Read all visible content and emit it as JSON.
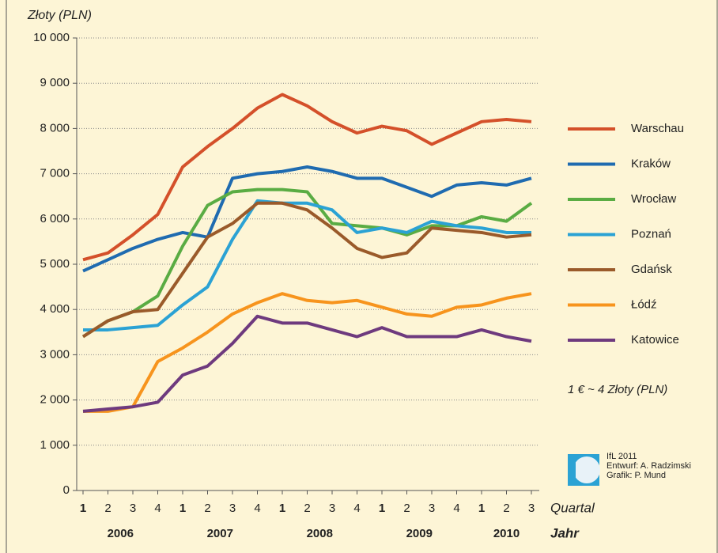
{
  "chart_data": {
    "type": "line",
    "y_label": "Złoty (PLN)",
    "categories": [
      "1",
      "2",
      "3",
      "4",
      "1",
      "2",
      "3",
      "4",
      "1",
      "2",
      "3",
      "4",
      "1",
      "2",
      "3",
      "4",
      "1",
      "2",
      "3"
    ],
    "x_label": "Quartal",
    "years": [
      "2006",
      "2007",
      "2008",
      "2009",
      "2010"
    ],
    "years_label": "Jahr",
    "ylim": [
      0,
      10000
    ],
    "yticks": [
      0,
      {
        "value": 1000,
        "label": "1 000"
      },
      {
        "value": 2000,
        "label": "2 000"
      },
      {
        "value": 3000,
        "label": "3 000"
      },
      {
        "value": 4000,
        "label": "4 000"
      },
      {
        "value": 5000,
        "label": "5 000"
      },
      {
        "value": 6000,
        "label": "6 000"
      },
      {
        "value": 7000,
        "label": "7 000"
      },
      {
        "value": 8000,
        "label": "8 000"
      },
      {
        "value": 9000,
        "label": "9 000"
      },
      {
        "value": 10000,
        "label": "10 000"
      }
    ],
    "grid": true,
    "legend": "right",
    "series": [
      {
        "name": "Warschau",
        "color": "#d4502a",
        "values": [
          5100,
          5250,
          5650,
          6100,
          7150,
          7600,
          8000,
          8450,
          8750,
          8500,
          8150,
          7900,
          8050,
          7950,
          7650,
          7900,
          8150,
          8200,
          8150
        ]
      },
      {
        "name": "Kraków",
        "color": "#1f6bb0",
        "values": [
          4850,
          5100,
          5350,
          5550,
          5700,
          5600,
          6900,
          7000,
          7050,
          7150,
          7050,
          6900,
          6900,
          6700,
          6500,
          6750,
          6800,
          6750,
          6900
        ]
      },
      {
        "name": "Wrocław",
        "color": "#5aac43",
        "values": [
          3400,
          3750,
          3950,
          4300,
          5400,
          6300,
          6600,
          6650,
          6650,
          6600,
          5900,
          5850,
          5800,
          5650,
          5850,
          5850,
          6050,
          5950,
          6350
        ]
      },
      {
        "name": "Poznań",
        "color": "#2ba2d4",
        "values": [
          3550,
          3550,
          3600,
          3650,
          4100,
          4500,
          5550,
          6400,
          6350,
          6350,
          6200,
          5700,
          5800,
          5700,
          5950,
          5850,
          5800,
          5700,
          5700
        ]
      },
      {
        "name": "Gdańsk",
        "color": "#9a5a2a",
        "values": [
          3400,
          3750,
          3950,
          4000,
          4800,
          5600,
          5900,
          6350,
          6350,
          6200,
          5800,
          5350,
          5150,
          5250,
          5800,
          5750,
          5700,
          5600,
          5650
        ]
      },
      {
        "name": "Łódź",
        "color": "#f7941d",
        "values": [
          1750,
          1750,
          1850,
          2850,
          3150,
          3500,
          3900,
          4150,
          4350,
          4200,
          4150,
          4200,
          4050,
          3900,
          3850,
          4050,
          4100,
          4250,
          4350
        ]
      },
      {
        "name": "Katowice",
        "color": "#6e3a7e",
        "values": [
          1750,
          1800,
          1850,
          1950,
          2550,
          2750,
          3250,
          3850,
          3700,
          3700,
          3550,
          3400,
          3600,
          3400,
          3400,
          3400,
          3550,
          3400,
          3300
        ]
      }
    ],
    "note": "1 € ~ 4 Złoty (PLN)",
    "credits": [
      "IfL 2011",
      "Entwurf: A. Radzimski",
      "Grafik: P. Mund"
    ]
  }
}
